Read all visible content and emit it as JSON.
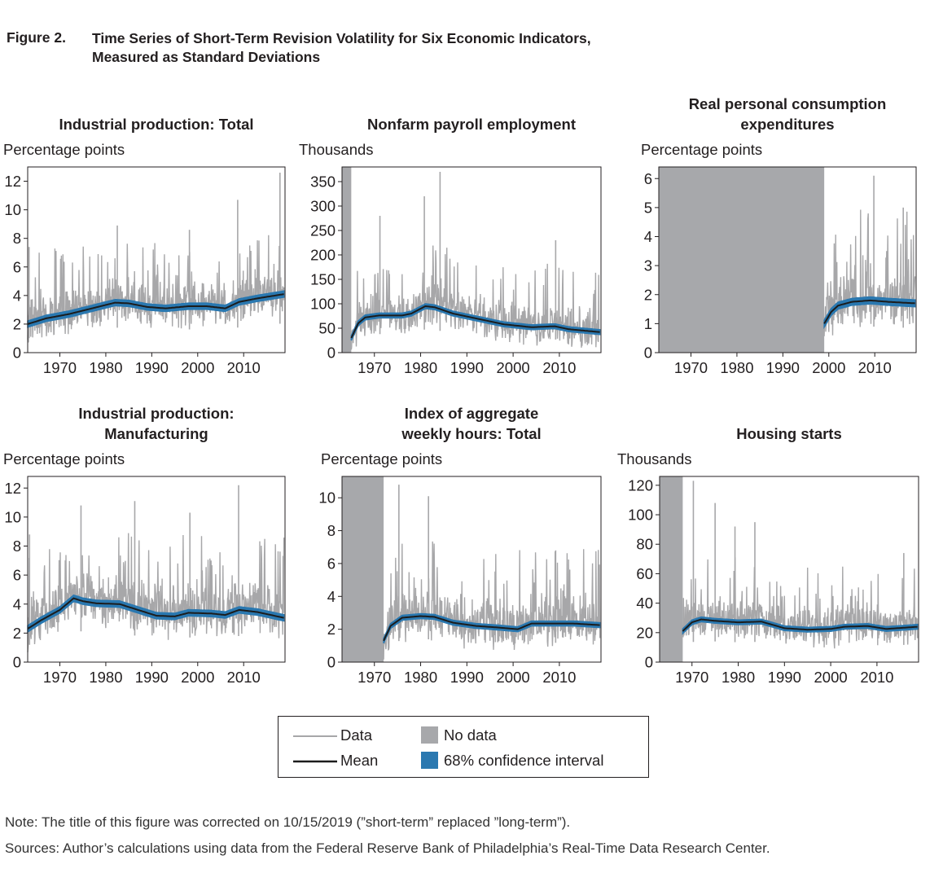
{
  "figure": {
    "label": "Figure 2.",
    "title_line1": "Time Series of Short-Term Revision Volatility for Six Economic Indicators,",
    "title_line2": "Measured as Standard Deviations"
  },
  "colors": {
    "data": "#a7a7a9",
    "no_data": "#a7a8ab",
    "mean": "#1c1c1c",
    "ci": "#2a78b0",
    "axis": "#231f20"
  },
  "legend": {
    "data": "Data",
    "no_data": "No data",
    "mean": "Mean",
    "ci": "68% confidence interval"
  },
  "notes": {
    "note": "Note: The title of this figure was corrected on 10/15/2019 (”short-term” replaced ”long-term”).",
    "sources": "Sources: Author’s calculations using data from the Federal Reserve Bank of Philadelphia’s Real-Time Data Research Center."
  },
  "chart_data": [
    {
      "type": "line",
      "title_lines": [
        "",
        "Industrial production: Total"
      ],
      "ylabel": "Percentage points",
      "xlim": [
        1963,
        2019
      ],
      "xticks": [
        1970,
        1980,
        1990,
        2000,
        2010
      ],
      "ylim": [
        0,
        13
      ],
      "yticks": [
        0,
        2,
        4,
        6,
        8,
        10,
        12
      ],
      "no_data_until": null,
      "data_start": 1963,
      "data_end": 2018.8,
      "data_noise": 2.2,
      "spikes": [
        [
          1963.3,
          7.4
        ],
        [
          1982.5,
          8.9
        ],
        [
          1998.2,
          8.6
        ],
        [
          2008.7,
          10.7
        ],
        [
          2017.9,
          12.6
        ]
      ],
      "series": [
        {
          "name": "Mean",
          "ci_halfwidth": 0.22,
          "x": [
            1963,
            1967,
            1972,
            1977,
            1982,
            1985,
            1989,
            1993,
            1998,
            2002,
            2006,
            2009,
            2013,
            2018.8
          ],
          "y": [
            2.0,
            2.4,
            2.7,
            3.1,
            3.5,
            3.45,
            3.2,
            3.1,
            3.25,
            3.25,
            3.1,
            3.55,
            3.8,
            4.1
          ]
        }
      ]
    },
    {
      "type": "line",
      "title_lines": [
        "",
        "Nonfarm payroll employment"
      ],
      "ylabel": "Thousands",
      "xlim": [
        1963,
        2019
      ],
      "xticks": [
        1970,
        1980,
        1990,
        2000,
        2010
      ],
      "ylim": [
        0,
        380
      ],
      "yticks": [
        0,
        50,
        100,
        150,
        200,
        250,
        300,
        350
      ],
      "no_data_until": 1965,
      "data_start": 1965,
      "data_end": 2018.8,
      "data_noise": 60,
      "spikes": [
        [
          1971.2,
          280
        ],
        [
          1980.8,
          320
        ],
        [
          1984.2,
          370
        ],
        [
          2009.2,
          230
        ]
      ],
      "series": [
        {
          "name": "Mean",
          "ci_halfwidth": 5,
          "x": [
            1965,
            1966.5,
            1968,
            1971,
            1976,
            1978,
            1981,
            1983,
            1987,
            1992,
            1998,
            2004,
            2009,
            2012,
            2018.8
          ],
          "y": [
            30,
            60,
            72,
            76,
            76,
            80,
            95,
            93,
            80,
            70,
            58,
            52,
            54,
            48,
            42
          ]
        }
      ]
    },
    {
      "type": "line",
      "title_lines": [
        "Real personal consumption",
        "expenditures"
      ],
      "ylabel": "Percentage points",
      "xlim": [
        1963,
        2019
      ],
      "xticks": [
        1970,
        1980,
        1990,
        2000,
        2010
      ],
      "ylim": [
        0,
        6.4
      ],
      "yticks": [
        0,
        1,
        2,
        3,
        4,
        5,
        6
      ],
      "no_data_until": 1999,
      "data_start": 1999,
      "data_end": 2018.8,
      "data_noise": 1.5,
      "spikes": [
        [
          2009.8,
          6.1
        ],
        [
          2016.2,
          5.0
        ]
      ],
      "series": [
        {
          "name": "Mean",
          "ci_halfwidth": 0.12,
          "x": [
            1999,
            2000.5,
            2002,
            2005,
            2009,
            2013,
            2018.8
          ],
          "y": [
            1.0,
            1.4,
            1.62,
            1.75,
            1.8,
            1.75,
            1.7
          ]
        }
      ]
    },
    {
      "type": "line",
      "title_lines": [
        "Industrial production:",
        "Manufacturing"
      ],
      "ylabel": "Percentage points",
      "xlim": [
        1963,
        2019
      ],
      "xticks": [
        1970,
        1980,
        1990,
        2000,
        2010
      ],
      "ylim": [
        0,
        12.8
      ],
      "yticks": [
        0,
        2,
        4,
        6,
        8,
        10,
        12
      ],
      "no_data_until": null,
      "data_start": 1963,
      "data_end": 2018.8,
      "data_noise": 2.6,
      "spikes": [
        [
          1963.4,
          8.8
        ],
        [
          1974.6,
          10.8
        ],
        [
          1986.3,
          11.1
        ],
        [
          1998.3,
          10.3
        ],
        [
          2008.9,
          12.2
        ]
      ],
      "series": [
        {
          "name": "Mean",
          "ci_halfwidth": 0.22,
          "x": [
            1963,
            1966,
            1970,
            1973,
            1975,
            1978,
            1983,
            1987,
            1991,
            1995,
            1998,
            2003,
            2006,
            2009,
            2013,
            2018.8
          ],
          "y": [
            2.3,
            2.9,
            3.6,
            4.4,
            4.2,
            4.05,
            4.0,
            3.6,
            3.2,
            3.15,
            3.4,
            3.35,
            3.25,
            3.6,
            3.45,
            3.05
          ]
        }
      ]
    },
    {
      "type": "line",
      "title_lines": [
        "Index of aggregate",
        "weekly hours: Total"
      ],
      "ylabel": "Percentage points",
      "xlim": [
        1963,
        2019
      ],
      "xticks": [
        1970,
        1980,
        1990,
        2000,
        2010
      ],
      "ylim": [
        0,
        11.3
      ],
      "yticks": [
        0,
        2,
        4,
        6,
        8,
        10
      ],
      "no_data_until": 1972,
      "data_start": 1972,
      "data_end": 2018.8,
      "data_noise": 2.2,
      "spikes": [
        [
          1975.3,
          10.8
        ],
        [
          1981.7,
          10.1
        ],
        [
          2009.2,
          6.8
        ]
      ],
      "series": [
        {
          "name": "Mean",
          "ci_halfwidth": 0.15,
          "x": [
            1972,
            1973.5,
            1976,
            1980,
            1983,
            1987,
            1992,
            1997,
            2001,
            2004,
            2008,
            2013,
            2018.8
          ],
          "y": [
            1.3,
            2.2,
            2.7,
            2.8,
            2.75,
            2.4,
            2.2,
            2.1,
            2.0,
            2.35,
            2.35,
            2.35,
            2.25
          ]
        }
      ]
    },
    {
      "type": "line",
      "title_lines": [
        "",
        "Housing starts"
      ],
      "ylabel": "Thousands",
      "xlim": [
        1963,
        2019
      ],
      "xticks": [
        1970,
        1980,
        1990,
        2000,
        2010
      ],
      "ylim": [
        0,
        126
      ],
      "yticks": [
        0,
        20,
        40,
        60,
        80,
        100,
        120
      ],
      "no_data_until": 1968,
      "data_start": 1968,
      "data_end": 2018.8,
      "data_noise": 20,
      "spikes": [
        [
          1970.3,
          123
        ],
        [
          1975,
          108
        ],
        [
          1983.6,
          95
        ],
        [
          1979.3,
          92
        ],
        [
          2015.8,
          74
        ]
      ],
      "series": [
        {
          "name": "Mean",
          "ci_halfwidth": 1.6,
          "x": [
            1968,
            1970,
            1972,
            1975,
            1980,
            1985,
            1990,
            1995,
            2000,
            2003,
            2008,
            2012,
            2018.8
          ],
          "y": [
            21,
            27,
            29,
            28,
            27,
            27.5,
            23,
            22,
            22.5,
            24,
            24.5,
            22.5,
            24
          ]
        }
      ]
    }
  ]
}
